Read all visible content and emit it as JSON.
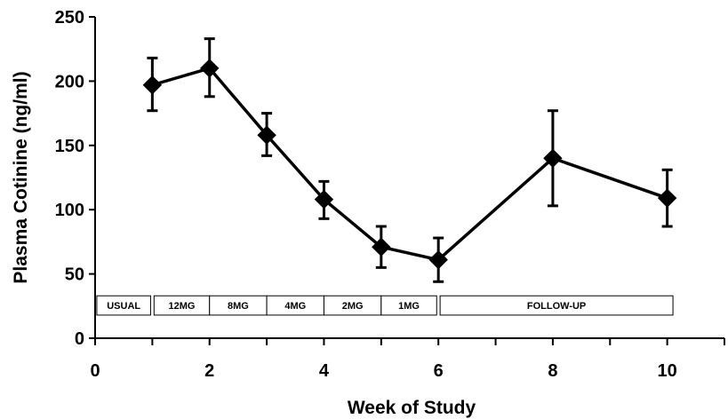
{
  "chart_data": {
    "type": "line",
    "title": "",
    "xlabel": "Week of Study",
    "ylabel": "Plasma Cotinine (ng/ml)",
    "xlim": [
      0,
      11
    ],
    "ylim": [
      0,
      250
    ],
    "x_ticks": [
      0,
      2,
      4,
      6,
      8,
      10
    ],
    "x_minor_ticks": [
      1,
      3,
      5,
      7,
      9,
      11
    ],
    "y_ticks": [
      0,
      50,
      100,
      150,
      200,
      250
    ],
    "grid": false,
    "legend": "none",
    "marker": "diamond",
    "line_color": "#000000",
    "series": [
      {
        "x": [
          1,
          2,
          3,
          4,
          5,
          6,
          8,
          10
        ],
        "y": [
          197,
          210,
          158,
          108,
          71,
          61,
          140,
          109
        ],
        "error_upper": [
          218,
          233,
          175,
          122,
          87,
          78,
          177,
          131
        ],
        "error_lower": [
          177,
          188,
          142,
          93,
          55,
          44,
          103,
          87
        ]
      }
    ],
    "phases": [
      {
        "label": "USUAL",
        "start": 0.03,
        "end": 0.97
      },
      {
        "label": "12MG",
        "start": 1.03,
        "end": 2.0
      },
      {
        "label": "8MG",
        "start": 2.0,
        "end": 3.0
      },
      {
        "label": "4MG",
        "start": 3.0,
        "end": 4.0
      },
      {
        "label": "2MG",
        "start": 4.0,
        "end": 5.0
      },
      {
        "label": "1MG",
        "start": 5.0,
        "end": 5.97
      },
      {
        "label": "FOLLOW-UP",
        "start": 6.03,
        "end": 10.1
      }
    ],
    "phase_y_range": [
      18,
      33
    ]
  }
}
